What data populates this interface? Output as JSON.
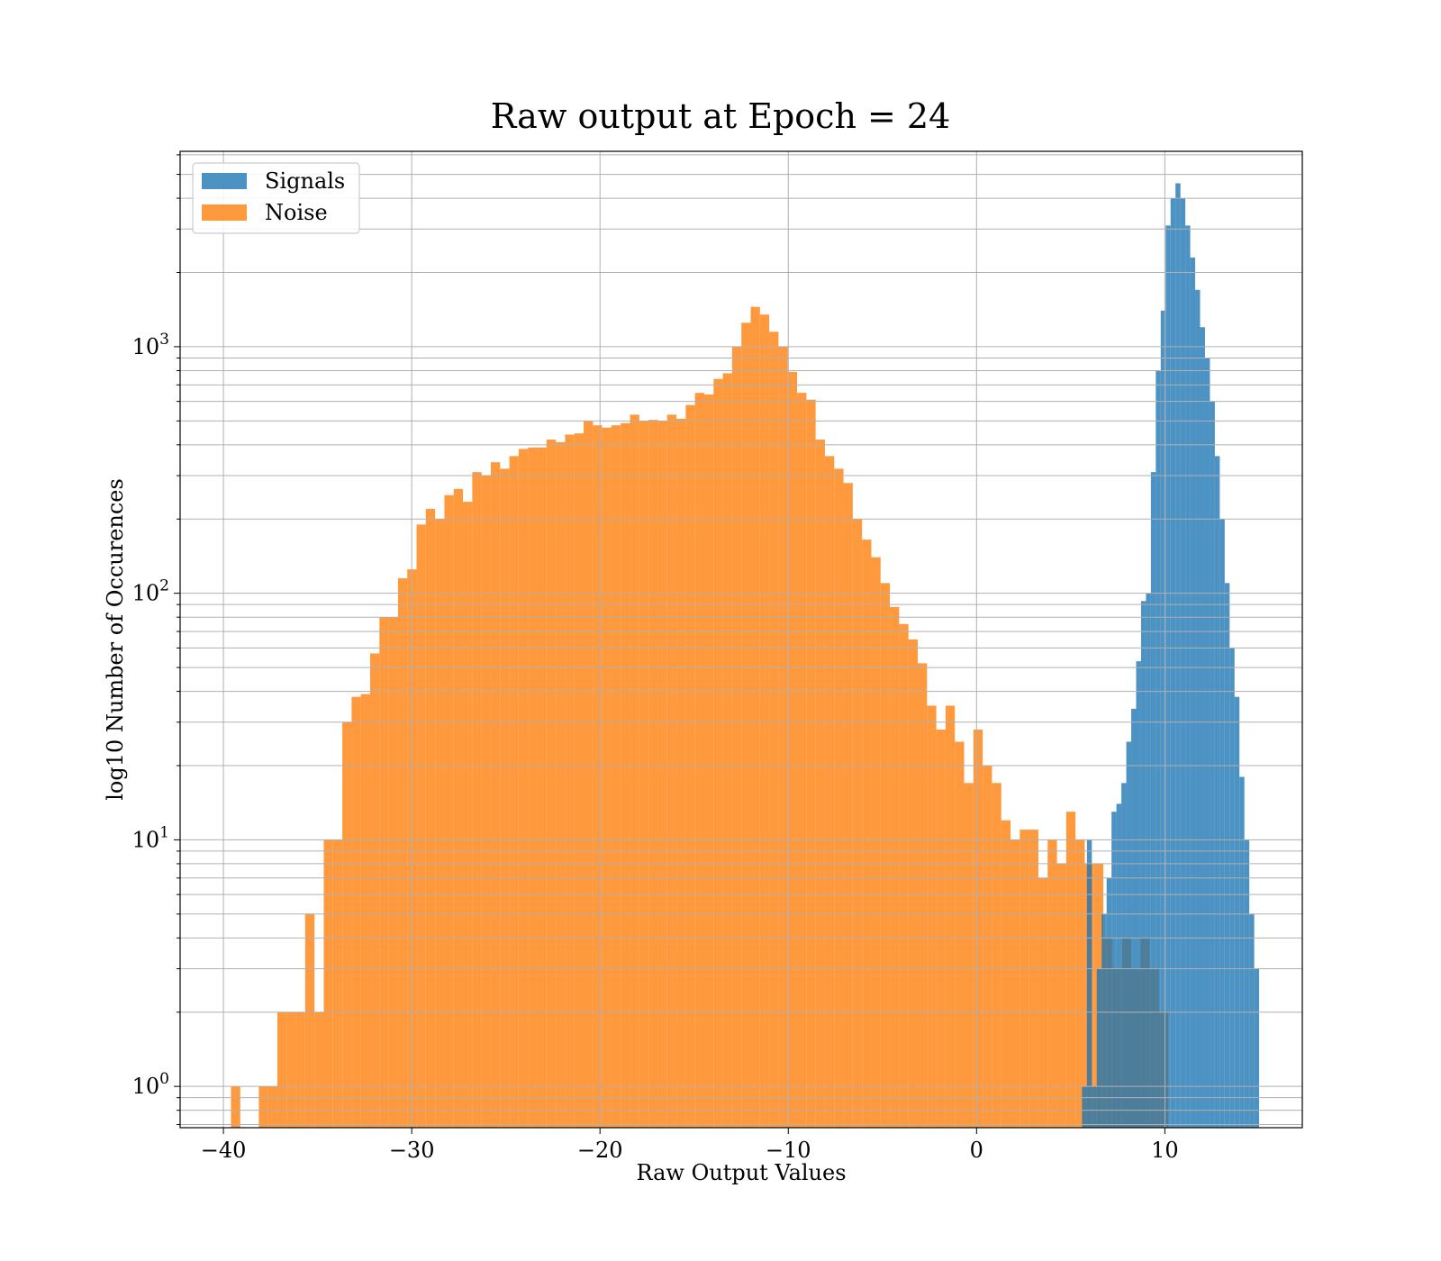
{
  "chart_data": {
    "type": "histogram",
    "title": "Raw output at Epoch = 24",
    "xlabel": "Raw Output Values",
    "ylabel": "log10 Number of Occurences",
    "yscale": "log",
    "xlim": [
      -42.3,
      17.3
    ],
    "ylim": [
      0.68,
      6200
    ],
    "grid": true,
    "legend_position": "upper-left",
    "x_ticks": [
      {
        "value": -40,
        "label": "−40"
      },
      {
        "value": -30,
        "label": "−30"
      },
      {
        "value": -20,
        "label": "−20"
      },
      {
        "value": -10,
        "label": "−10"
      },
      {
        "value": 0,
        "label": "0"
      },
      {
        "value": 10,
        "label": "10"
      }
    ],
    "y_ticks": [
      {
        "value": 1,
        "base": "10",
        "exp": "0"
      },
      {
        "value": 10,
        "base": "10",
        "exp": "1"
      },
      {
        "value": 100,
        "base": "10",
        "exp": "2"
      },
      {
        "value": 1000,
        "base": "10",
        "exp": "3"
      }
    ],
    "series": [
      {
        "name": "Signals",
        "color": "#1f77b4",
        "opacity": 0.8,
        "bin_start": 5.6,
        "bin_width": 0.2613,
        "counts": [
          1,
          10,
          1,
          3,
          5,
          7,
          13,
          14,
          17,
          25,
          34,
          53,
          93,
          100,
          310,
          800,
          1400,
          3100,
          4000,
          4600,
          4000,
          3100,
          2300,
          1700,
          1200,
          900,
          600,
          360,
          200,
          110,
          60,
          38,
          18,
          10,
          5,
          3
        ]
      },
      {
        "name": "Noise",
        "color": "#ff7f0e",
        "opacity": 0.8,
        "bin_start": -39.6,
        "bin_width": 0.4929,
        "counts": [
          1,
          0,
          0,
          1,
          1,
          2,
          2,
          2,
          5,
          2,
          10,
          10,
          30,
          38,
          39,
          57,
          80,
          80,
          115,
          125,
          190,
          220,
          200,
          250,
          265,
          235,
          310,
          300,
          340,
          320,
          360,
          385,
          390,
          390,
          420,
          410,
          440,
          445,
          500,
          480,
          470,
          480,
          490,
          530,
          500,
          505,
          500,
          530,
          510,
          580,
          650,
          640,
          740,
          780,
          1000,
          1250,
          1450,
          1350,
          1150,
          1000,
          790,
          650,
          610,
          420,
          360,
          320,
          280,
          200,
          165,
          140,
          110,
          88,
          75,
          65,
          52,
          35,
          28,
          35,
          25,
          17,
          28,
          20,
          17,
          12,
          10,
          11,
          11,
          7,
          10,
          8,
          13,
          10,
          8,
          8,
          4,
          3,
          4,
          3,
          4,
          3,
          2
        ]
      }
    ]
  }
}
